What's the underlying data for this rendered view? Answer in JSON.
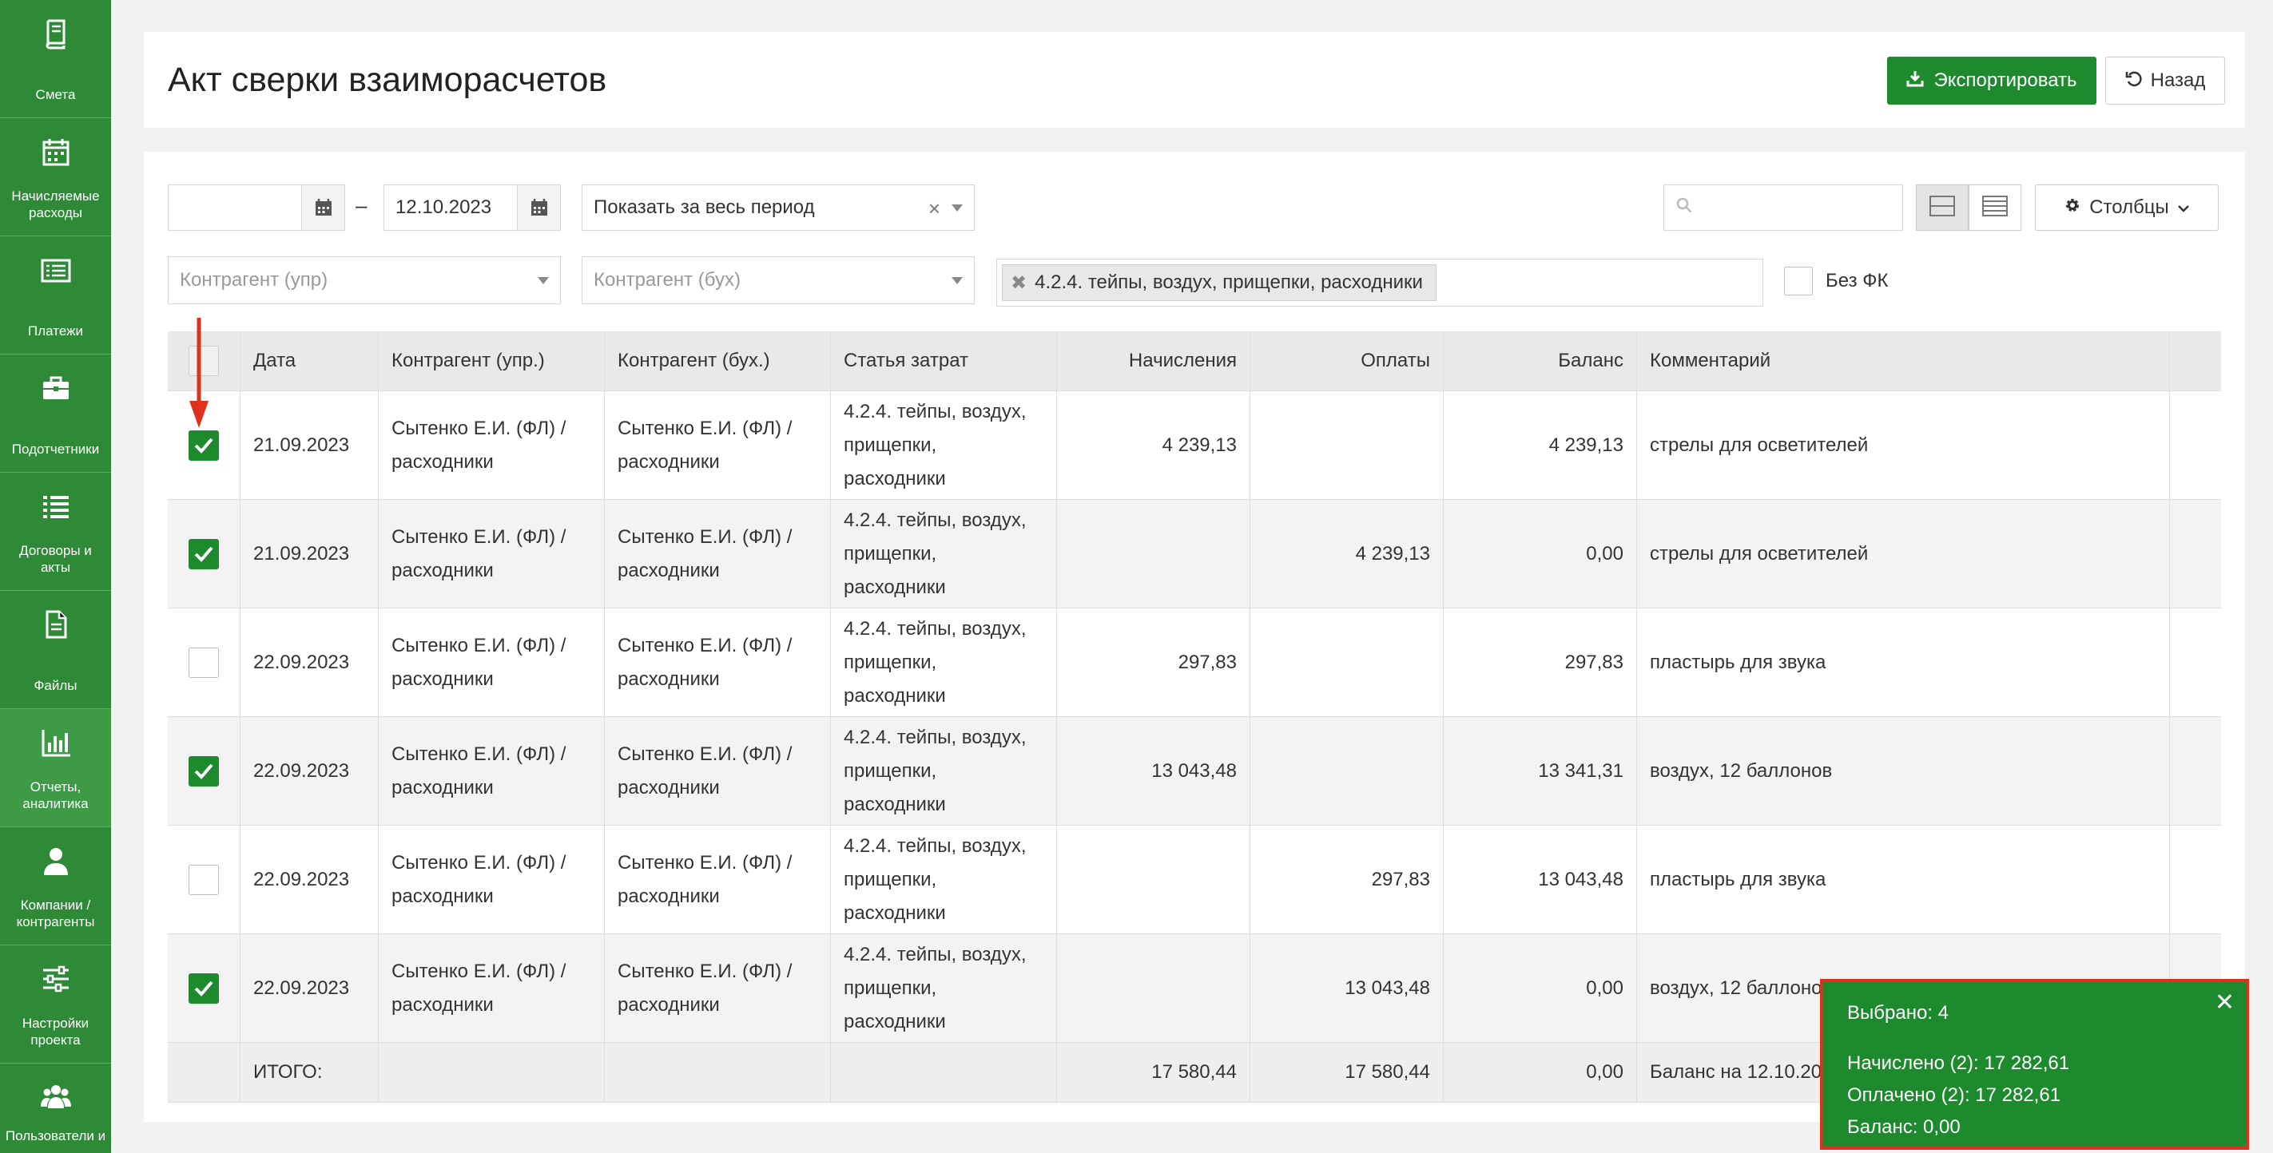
{
  "sidebar": {
    "items": [
      {
        "label": "Смета",
        "icon": "book-icon"
      },
      {
        "label": "Начисляемые расходы",
        "icon": "calendar-icon"
      },
      {
        "label": "Платежи",
        "icon": "list-card-icon"
      },
      {
        "label": "Подотчетники",
        "icon": "briefcase-icon"
      },
      {
        "label": "Договоры и акты",
        "icon": "list-icon"
      },
      {
        "label": "Файлы",
        "icon": "file-icon"
      },
      {
        "label": "Отчеты, аналитика",
        "icon": "bar-chart-icon"
      },
      {
        "label": "Компании / контрагенты",
        "icon": "user-icon"
      },
      {
        "label": "Настройки проекта",
        "icon": "sliders-icon"
      },
      {
        "label": "Пользователи и",
        "icon": "users-icon"
      }
    ]
  },
  "header": {
    "title": "Акт сверки взаиморасчетов",
    "export_label": "Экспортировать",
    "back_label": "Назад"
  },
  "filters": {
    "date_from": "",
    "date_to": "12.10.2023",
    "period": "Показать за весь период",
    "search_placeholder": "",
    "columns_label": "Столбцы",
    "counterparty_mgmt_placeholder": "Контрагент (упр)",
    "counterparty_acc_placeholder": "Контрагент (бух)",
    "cost_item_tag": "4.2.4. тейпы, воздух, прищепки, расходники",
    "no_fk_label": "Без ФК"
  },
  "table": {
    "headers": [
      "Дата",
      "Контрагент (упр.)",
      "Контрагент (бух.)",
      "Статья затрат",
      "Начисления",
      "Оплаты",
      "Баланс",
      "Комментарий"
    ],
    "rows": [
      {
        "checked": true,
        "date": "21.09.2023",
        "cp_mgmt": "Сытенко Е.И. (ФЛ) / расходники",
        "cp_acc": "Сытенко Е.И. (ФЛ) / расходники",
        "item": "4.2.4. тейпы, воздух, прищепки, расходники",
        "accrual": "4 239,13",
        "payment": "",
        "balance": "4 239,13",
        "comment": "стрелы для осветителей"
      },
      {
        "checked": true,
        "date": "21.09.2023",
        "cp_mgmt": "Сытенко Е.И. (ФЛ) / расходники",
        "cp_acc": "Сытенко Е.И. (ФЛ) / расходники",
        "item": "4.2.4. тейпы, воздух, прищепки, расходники",
        "accrual": "",
        "payment": "4 239,13",
        "balance": "0,00",
        "comment": "стрелы для осветителей"
      },
      {
        "checked": false,
        "date": "22.09.2023",
        "cp_mgmt": "Сытенко Е.И. (ФЛ) / расходники",
        "cp_acc": "Сытенко Е.И. (ФЛ) / расходники",
        "item": "4.2.4. тейпы, воздух, прищепки, расходники",
        "accrual": "297,83",
        "payment": "",
        "balance": "297,83",
        "comment": "пластырь для звука"
      },
      {
        "checked": true,
        "date": "22.09.2023",
        "cp_mgmt": "Сытенко Е.И. (ФЛ) / расходники",
        "cp_acc": "Сытенко Е.И. (ФЛ) / расходники",
        "item": "4.2.4. тейпы, воздух, прищепки, расходники",
        "accrual": "13 043,48",
        "payment": "",
        "balance": "13 341,31",
        "comment": "воздух, 12 баллонов"
      },
      {
        "checked": false,
        "date": "22.09.2023",
        "cp_mgmt": "Сытенко Е.И. (ФЛ) / расходники",
        "cp_acc": "Сытенко Е.И. (ФЛ) / расходники",
        "item": "4.2.4. тейпы, воздух, прищепки, расходники",
        "accrual": "",
        "payment": "297,83",
        "balance": "13 043,48",
        "comment": "пластырь для звука"
      },
      {
        "checked": true,
        "date": "22.09.2023",
        "cp_mgmt": "Сытенко Е.И. (ФЛ) / расходники",
        "cp_acc": "Сытенко Е.И. (ФЛ) / расходники",
        "item": "4.2.4. тейпы, воздух, прищепки, расходники",
        "accrual": "",
        "payment": "13 043,48",
        "balance": "0,00",
        "comment": "воздух, 12 баллонов"
      }
    ],
    "total": {
      "label": "ИТОГО:",
      "accrual": "17 580,44",
      "payment": "17 580,44",
      "balance": "0,00",
      "comment": "Баланс на 12.10.2023"
    }
  },
  "popup": {
    "selected": "Выбрано: 4",
    "accrued": "Начислено (2): 17 282,61",
    "paid": "Оплачено (2): 17 282,61",
    "balance": "Баланс: 0,00"
  },
  "colors": {
    "sidebar": "#2e8a37",
    "accent": "#1e8a2e",
    "highlight_border": "#e0301e",
    "arrow": "#e0301e"
  }
}
